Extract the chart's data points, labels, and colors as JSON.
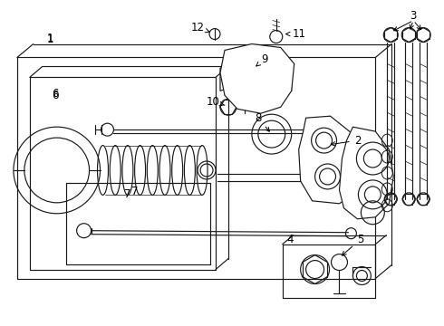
{
  "bg_color": "#ffffff",
  "line_color": "#1a1a1a",
  "fig_width": 4.9,
  "fig_height": 3.6,
  "dpi": 100,
  "label_fs": 8.5,
  "lw": 0.85
}
